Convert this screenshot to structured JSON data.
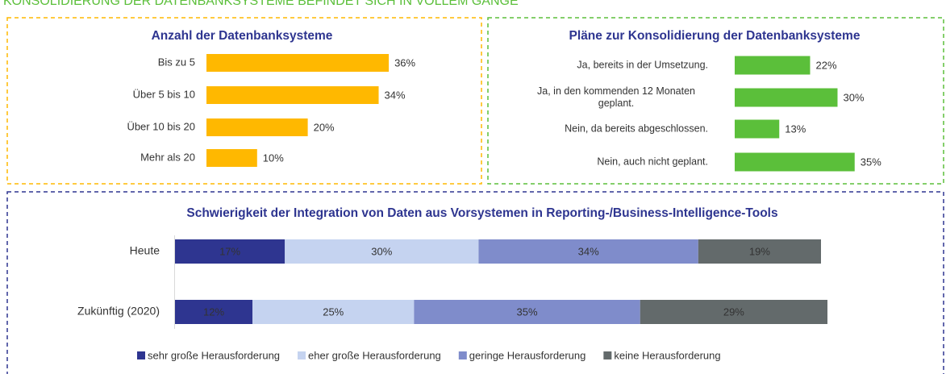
{
  "header": {
    "title": "KONSOLIDIERUNG DER DATENBANKSYSTEME BEFINDET SICH IN VOLLEM GANGE"
  },
  "chart_data": [
    {
      "type": "bar",
      "orientation": "horizontal",
      "title": "Anzahl der Datenbanksysteme",
      "categories": [
        "Bis zu 5",
        "Über 5 bis 10",
        "Über 10 bis 20",
        "Mehr als 20"
      ],
      "values": [
        36,
        34,
        20,
        10
      ],
      "value_labels": [
        "36%",
        "34%",
        "20%",
        "10%"
      ],
      "color": "#ffb800"
    },
    {
      "type": "bar",
      "orientation": "horizontal",
      "title": "Pläne zur Konsolidierung der Datenbanksysteme",
      "categories": [
        "Ja, bereits in der Umsetzung.",
        "Ja, in den kommenden 12 Monaten geplant.",
        "Nein, da bereits abgeschlossen.",
        "Nein, auch nicht geplant."
      ],
      "values": [
        22,
        30,
        13,
        35
      ],
      "value_labels": [
        "22%",
        "30%",
        "13%",
        "35%"
      ],
      "color": "#5bbf3a"
    },
    {
      "type": "stacked_bar",
      "orientation": "horizontal",
      "title": "Schwierigkeit der Integration von Daten aus Vorsystemen in Reporting-/Business-Intelligence-Tools",
      "categories": [
        "Heute",
        "Zukünftig (2020)"
      ],
      "series": [
        {
          "name": "sehr große Herausforderung",
          "color": "#2e3590",
          "values": [
            17,
            12
          ],
          "value_labels": [
            "17%",
            "12%"
          ]
        },
        {
          "name": "eher große Herausforderung",
          "color": "#c5d3f0",
          "values": [
            30,
            25
          ],
          "value_labels": [
            "30%",
            "25%"
          ]
        },
        {
          "name": "geringe Herausforderung",
          "color": "#7f8ccb",
          "values": [
            34,
            35
          ],
          "value_labels": [
            "34%",
            "35%"
          ]
        },
        {
          "name": "keine Herausforderung",
          "color": "#636a6b",
          "values": [
            19,
            29
          ],
          "value_labels": [
            "19%",
            "29%"
          ]
        }
      ],
      "legend": "bottom"
    }
  ]
}
